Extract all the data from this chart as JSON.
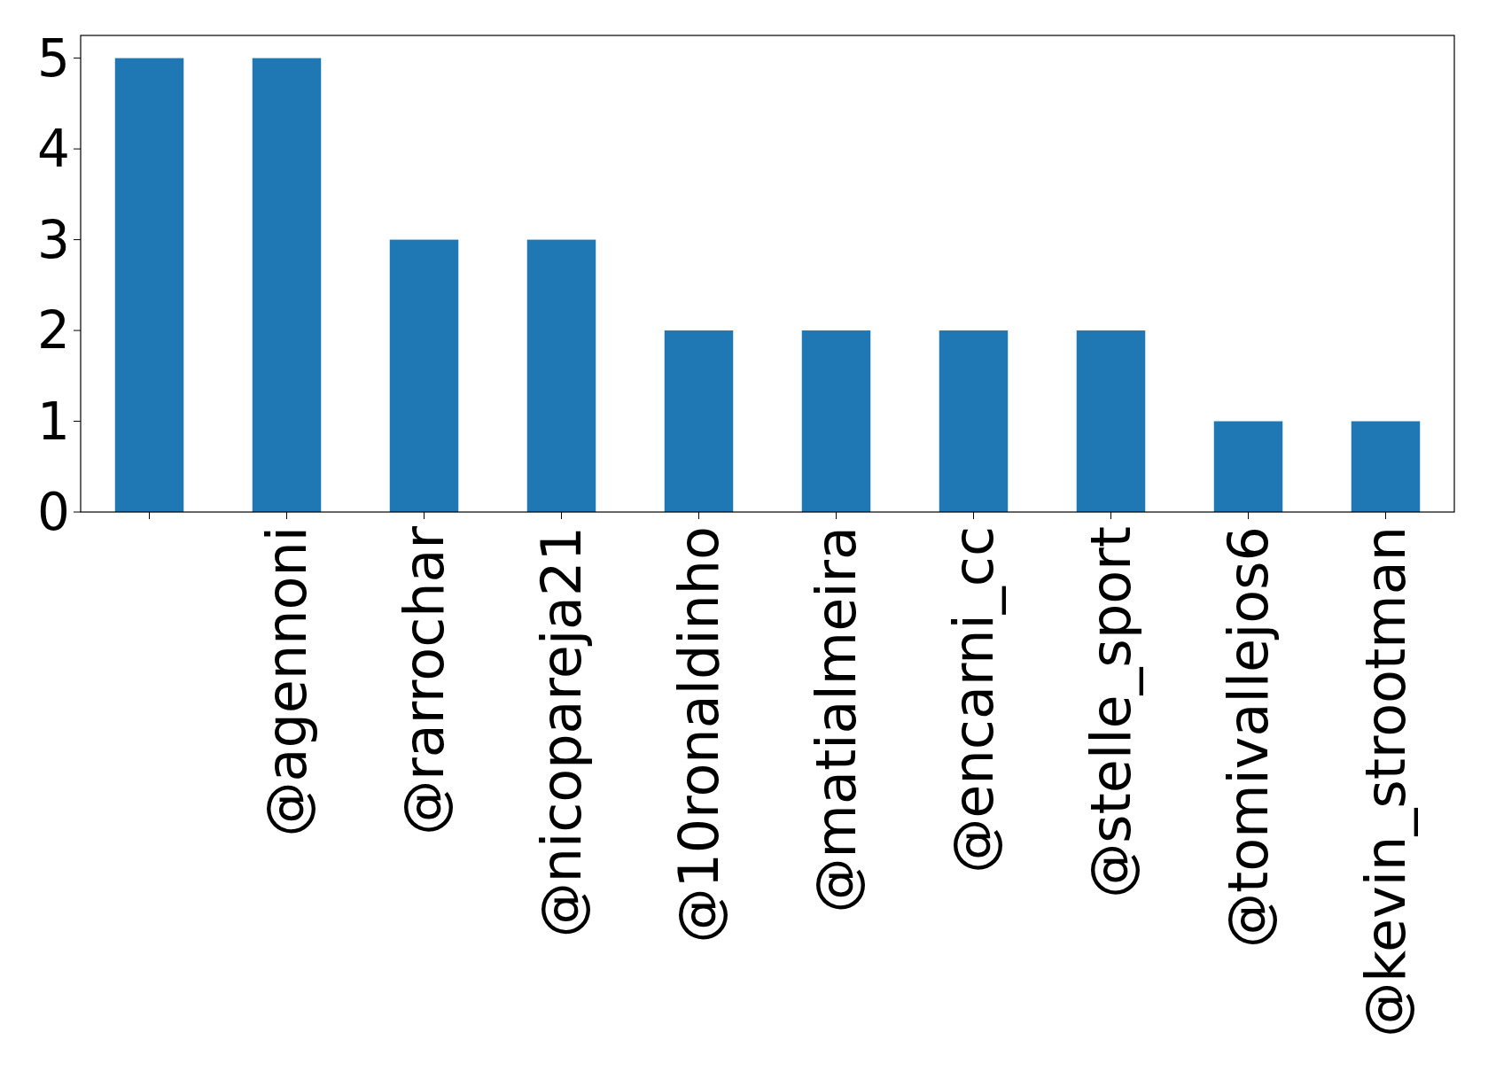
{
  "chart_data": {
    "type": "bar",
    "categories": [
      null,
      "@agennoni",
      "@rarrochar",
      "@nicopareja21",
      "@10ronaldinho",
      "@matialmeira",
      "@encarni_cc",
      "@stelle_sport",
      "@tomivallejos6",
      "@kevin_strootman"
    ],
    "values": [
      5,
      5,
      3,
      3,
      2,
      2,
      2,
      2,
      1,
      1
    ],
    "color": "#1f77b4",
    "ylim": [
      0,
      5.25
    ],
    "yticks": [
      0,
      1,
      2,
      3,
      4,
      5
    ],
    "grid": false
  }
}
